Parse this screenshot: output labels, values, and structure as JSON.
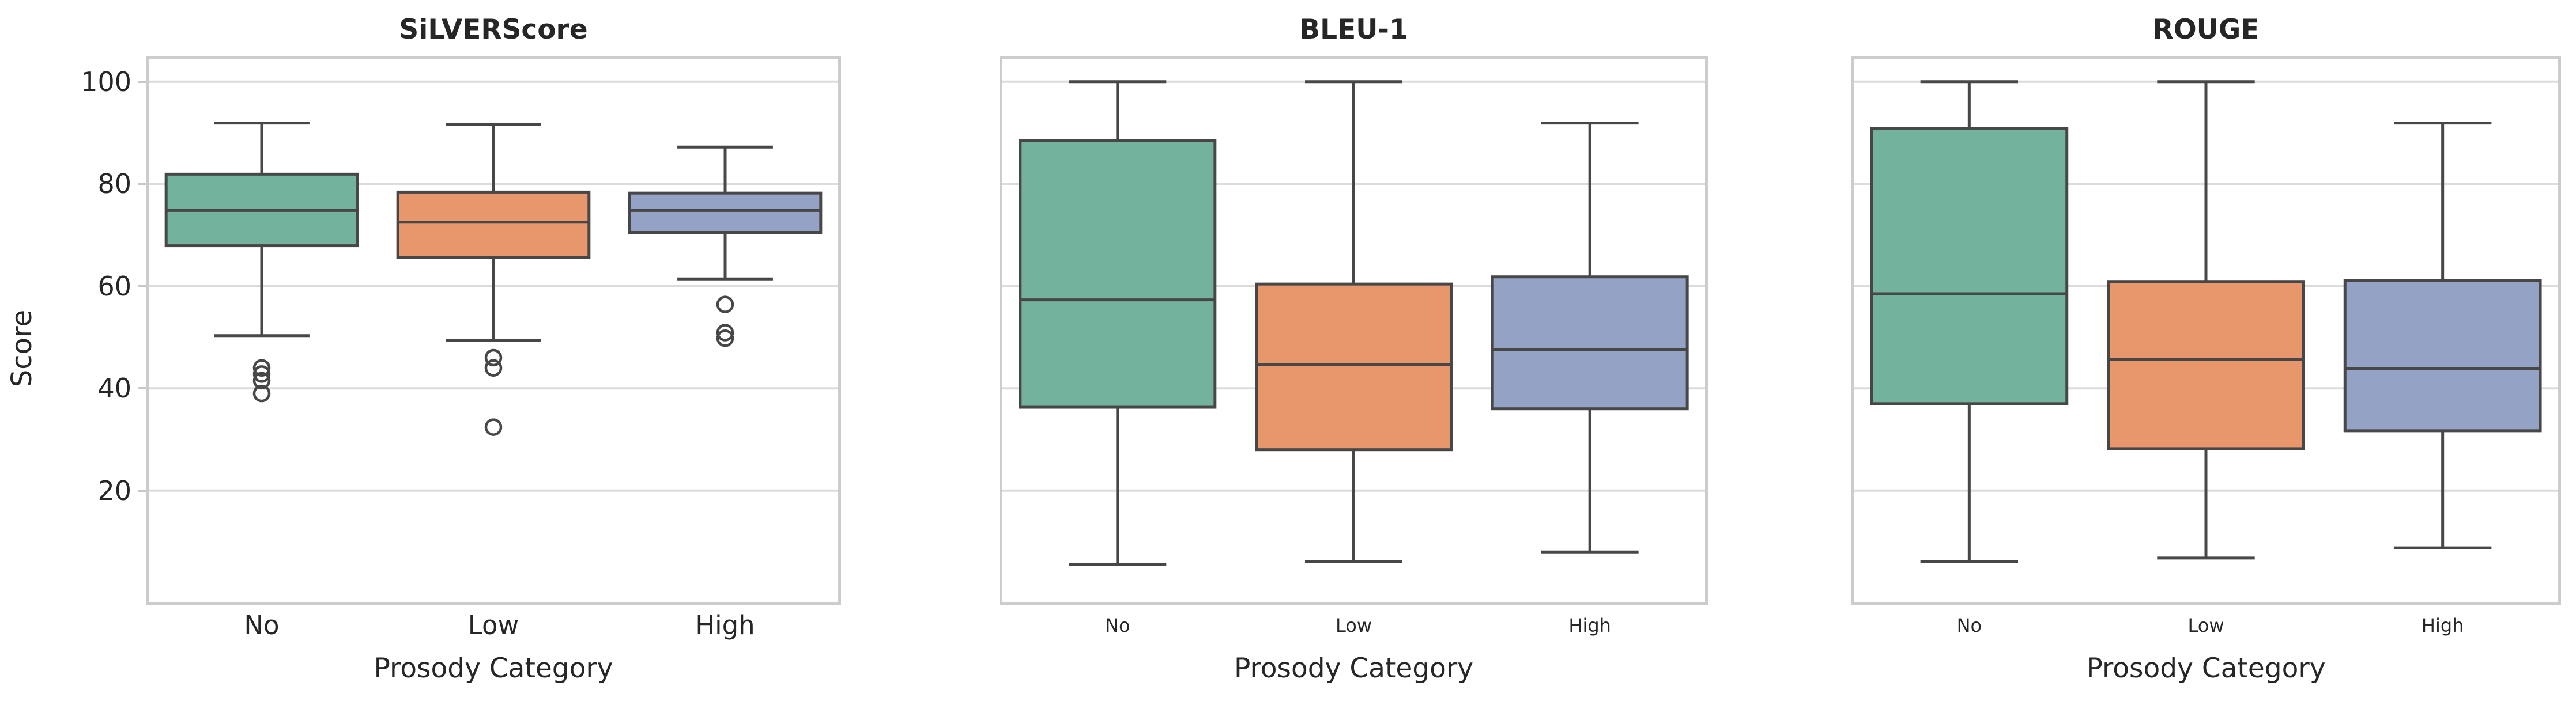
{
  "figure": {
    "ylabel": "Score",
    "xlabel": "Prosody Category",
    "categories": [
      "No",
      "Low",
      "High"
    ],
    "y_ticks": [
      100,
      80,
      60,
      40,
      20
    ],
    "category_colors": [
      "#73b39e",
      "#e8966c",
      "#94a2c6"
    ],
    "edge_color": "#474747",
    "grid_color": "#dcdcdc",
    "spine_color": "#cccccc",
    "text_color": "#262626",
    "background_color": "#ffffff"
  },
  "chart_data": [
    {
      "type": "box",
      "title": "SiLVERScore",
      "xlabel": "Prosody Category",
      "ylabel": "Score",
      "categories": [
        "No",
        "Low",
        "High"
      ],
      "ylim": [
        -2.3,
        105
      ],
      "grid": "horizontal",
      "boxes": [
        {
          "category": "No",
          "whislo": 50.3,
          "q1": 67.9,
          "med": 74.8,
          "q3": 81.9,
          "whishi": 91.9,
          "fliers": [
            44.0,
            42.8,
            41.5,
            39.0
          ]
        },
        {
          "category": "Low",
          "whislo": 49.4,
          "q1": 65.6,
          "med": 72.5,
          "q3": 78.4,
          "whishi": 91.6,
          "fliers": [
            46.0,
            44.0,
            32.4
          ]
        },
        {
          "category": "High",
          "whislo": 61.4,
          "q1": 70.5,
          "med": 74.8,
          "q3": 78.2,
          "whishi": 87.2,
          "fliers": [
            56.4,
            50.9,
            49.8
          ]
        }
      ]
    },
    {
      "type": "box",
      "title": "BLEU-1",
      "xlabel": "Prosody Category",
      "ylabel": "Score",
      "categories": [
        "No",
        "Low",
        "High"
      ],
      "ylim": [
        -2.3,
        105
      ],
      "grid": "horizontal",
      "boxes": [
        {
          "category": "No",
          "whislo": 5.5,
          "q1": 36.3,
          "med": 57.3,
          "q3": 88.5,
          "whishi": 100.0,
          "fliers": []
        },
        {
          "category": "Low",
          "whislo": 6.1,
          "q1": 28.0,
          "med": 44.6,
          "q3": 60.4,
          "whishi": 100.0,
          "fliers": []
        },
        {
          "category": "High",
          "whislo": 8.0,
          "q1": 36.0,
          "med": 47.6,
          "q3": 61.8,
          "whishi": 91.9,
          "fliers": []
        }
      ]
    },
    {
      "type": "box",
      "title": "ROUGE",
      "xlabel": "Prosody Category",
      "ylabel": "Score",
      "categories": [
        "No",
        "Low",
        "High"
      ],
      "ylim": [
        -2.3,
        105
      ],
      "grid": "horizontal",
      "boxes": [
        {
          "category": "No",
          "whislo": 6.1,
          "q1": 37.0,
          "med": 58.5,
          "q3": 90.8,
          "whishi": 100.0,
          "fliers": []
        },
        {
          "category": "Low",
          "whislo": 6.8,
          "q1": 28.2,
          "med": 45.6,
          "q3": 60.9,
          "whishi": 100.0,
          "fliers": []
        },
        {
          "category": "High",
          "whislo": 8.8,
          "q1": 31.7,
          "med": 43.9,
          "q3": 61.1,
          "whishi": 91.9,
          "fliers": []
        }
      ]
    }
  ]
}
